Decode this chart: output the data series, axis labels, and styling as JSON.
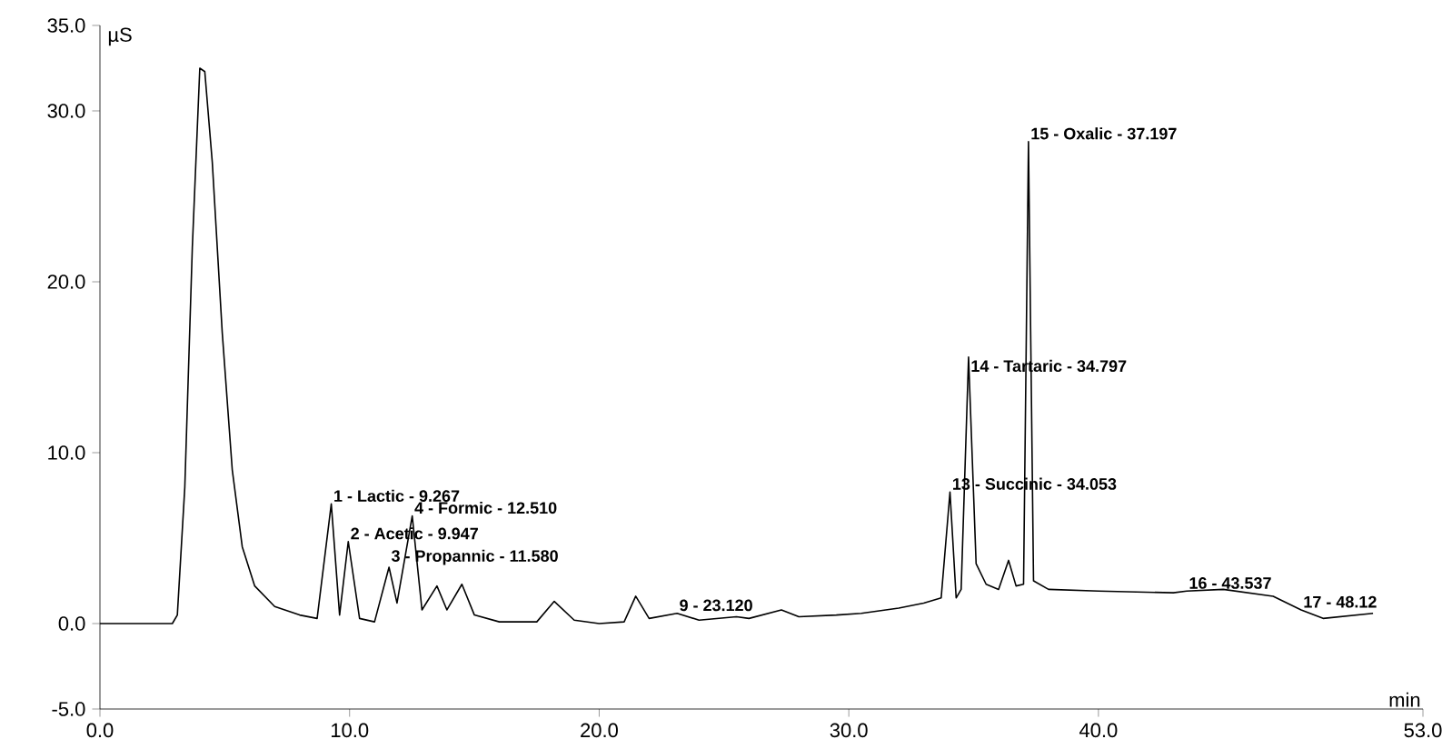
{
  "chart_data": {
    "type": "line",
    "xlabel": "min",
    "ylabel": "µS",
    "color": "#000000",
    "marker": "none",
    "line_style": "solid",
    "grid": false,
    "xlim": [
      0,
      53
    ],
    "ylim": [
      -5,
      35
    ],
    "xticks": [
      {
        "value": 0,
        "label": "0.0"
      },
      {
        "value": 10,
        "label": "10.0"
      },
      {
        "value": 20,
        "label": "20.0"
      },
      {
        "value": 30,
        "label": "30.0"
      },
      {
        "value": 40,
        "label": "40.0"
      },
      {
        "value": 53,
        "label": "53.0"
      }
    ],
    "yticks": [
      {
        "value": -5,
        "label": "-5.0"
      },
      {
        "value": 0,
        "label": "0.0"
      },
      {
        "value": 10,
        "label": "10.0"
      },
      {
        "value": 20,
        "label": "20.0"
      },
      {
        "value": 30,
        "label": "30.0"
      },
      {
        "value": 35,
        "label": "35.0"
      }
    ],
    "x": [
      0,
      2.9,
      3.1,
      3.4,
      3.7,
      4.0,
      4.2,
      4.5,
      4.9,
      5.3,
      5.7,
      6.2,
      7,
      8,
      8.7,
      9.267,
      9.6,
      9.947,
      10.4,
      11.0,
      11.58,
      11.9,
      12.51,
      12.9,
      13.5,
      13.9,
      14.5,
      15.0,
      16,
      17.5,
      18.2,
      19,
      20,
      21.0,
      21.463,
      22,
      23.12,
      24,
      25.5,
      26,
      27.3,
      28,
      29.5,
      30.5,
      32,
      33,
      33.7,
      34.053,
      34.3,
      34.5,
      34.797,
      35.1,
      35.5,
      36,
      36.4,
      36.7,
      37.0,
      37.197,
      37.4,
      38,
      40,
      43,
      43.537,
      45,
      47,
      48.12,
      49,
      51
    ],
    "values": [
      0,
      0,
      0.5,
      8,
      22,
      32.5,
      32.3,
      27,
      17,
      9,
      4.5,
      2.2,
      1,
      0.5,
      0.3,
      7.0,
      0.5,
      4.8,
      0.3,
      0.1,
      3.3,
      1.2,
      6.3,
      0.8,
      2.2,
      0.8,
      2.3,
      0.5,
      0.1,
      0.1,
      1.3,
      0.2,
      0,
      0.1,
      1.6,
      0.3,
      0.6,
      0.2,
      0.4,
      0.3,
      0.8,
      0.4,
      0.5,
      0.6,
      0.9,
      1.2,
      1.5,
      7.7,
      1.5,
      2.0,
      15.6,
      3.5,
      2.3,
      2.0,
      3.7,
      2.2,
      2.3,
      28.2,
      2.5,
      2.0,
      1.9,
      1.8,
      1.9,
      2.0,
      1.6,
      0.8,
      0.3,
      0.6
    ],
    "annotations": [
      {
        "text": "1 - Lactic - 9.267",
        "x": 9.267,
        "y": 7.0
      },
      {
        "text": "2 - Acetic - 9.947",
        "x": 9.947,
        "y": 4.8
      },
      {
        "text": "3 - Propannic - 11.580",
        "x": 11.58,
        "y": 3.3
      },
      {
        "text": "4 - Formic - 12.510",
        "x": 12.51,
        "y": 6.3
      },
      {
        "text": "9 - 23.120",
        "x": 23.12,
        "y": 0.6
      },
      {
        "text": "13 - Succinic - 34.053",
        "x": 34.053,
        "y": 7.7
      },
      {
        "text": "14 - Tartaric - 34.797",
        "x": 34.797,
        "y": 14.6
      },
      {
        "text": "15 - Oxalic - 37.197",
        "x": 37.197,
        "y": 28.2
      },
      {
        "text": "16 - 43.537",
        "x": 43.537,
        "y": 1.9
      },
      {
        "text": "17 - 48.12",
        "x": 48.12,
        "y": 0.8
      }
    ]
  }
}
